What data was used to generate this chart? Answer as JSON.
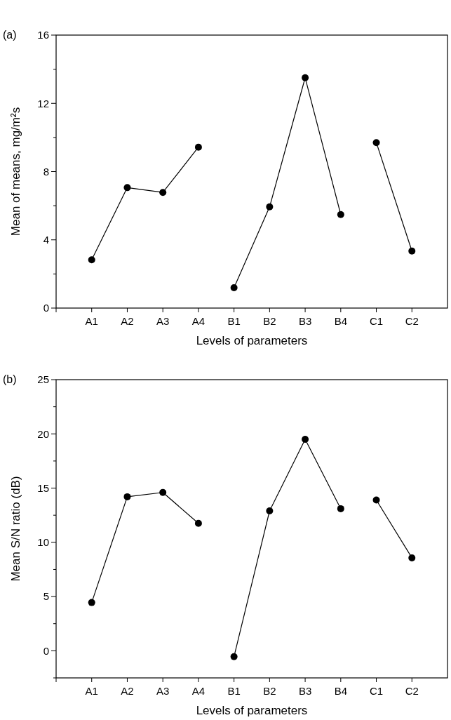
{
  "chart_data": [
    {
      "type": "line",
      "title": "(a)",
      "xlabel": "Levels of parameters",
      "ylabel": "Mean of means, mg/m²s",
      "categories": [
        "A1",
        "A2",
        "A3",
        "A4",
        "B1",
        "B2",
        "B3",
        "B4",
        "C1",
        "C2"
      ],
      "series": [
        {
          "color": "#000000",
          "values": [
            2.83,
            7.06,
            6.78,
            9.43,
            null,
            null,
            null,
            null,
            null,
            null
          ]
        },
        {
          "color": "#000000",
          "values": [
            null,
            null,
            null,
            null,
            1.19,
            5.93,
            13.5,
            5.48,
            null,
            null
          ]
        },
        {
          "color": "#000000",
          "values": [
            null,
            null,
            null,
            null,
            null,
            null,
            null,
            null,
            9.7,
            3.34
          ]
        }
      ],
      "ylim": [
        0,
        16
      ],
      "yticks": [
        0,
        {
          "value": 2,
          "label": null
        },
        4,
        {
          "value": 6,
          "label": null
        },
        8,
        {
          "value": 10,
          "label": null
        },
        12,
        {
          "value": 14,
          "label": null
        },
        16
      ],
      "marker": "circle",
      "line_style": "solid"
    },
    {
      "type": "line",
      "title": "(b)",
      "xlabel": "Levels of parameters",
      "ylabel": "Mean S/N ratio (dB)",
      "categories": [
        "A1",
        "A2",
        "A3",
        "A4",
        "B1",
        "B2",
        "B3",
        "B4",
        "C1",
        "C2"
      ],
      "series": [
        {
          "color": "#000000",
          "values": [
            4.45,
            14.2,
            14.6,
            11.75,
            null,
            null,
            null,
            null,
            null,
            null
          ]
        },
        {
          "color": "#000000",
          "values": [
            null,
            null,
            null,
            null,
            -0.54,
            12.9,
            19.5,
            13.1,
            null,
            null
          ]
        },
        {
          "color": "#000000",
          "values": [
            null,
            null,
            null,
            null,
            null,
            null,
            null,
            null,
            13.9,
            8.57
          ]
        }
      ],
      "ylim": [
        -2.5,
        25
      ],
      "yticks": [
        {
          "value": -2.5,
          "label": null
        },
        0,
        {
          "value": 2.5,
          "label": null
        },
        5,
        {
          "value": 7.5,
          "label": null
        },
        10,
        {
          "value": 12.5,
          "label": null
        },
        15,
        {
          "value": 17.5,
          "label": null
        },
        20,
        {
          "value": 22.5,
          "label": null
        },
        25
      ],
      "marker": "circle",
      "line_style": "solid"
    }
  ]
}
